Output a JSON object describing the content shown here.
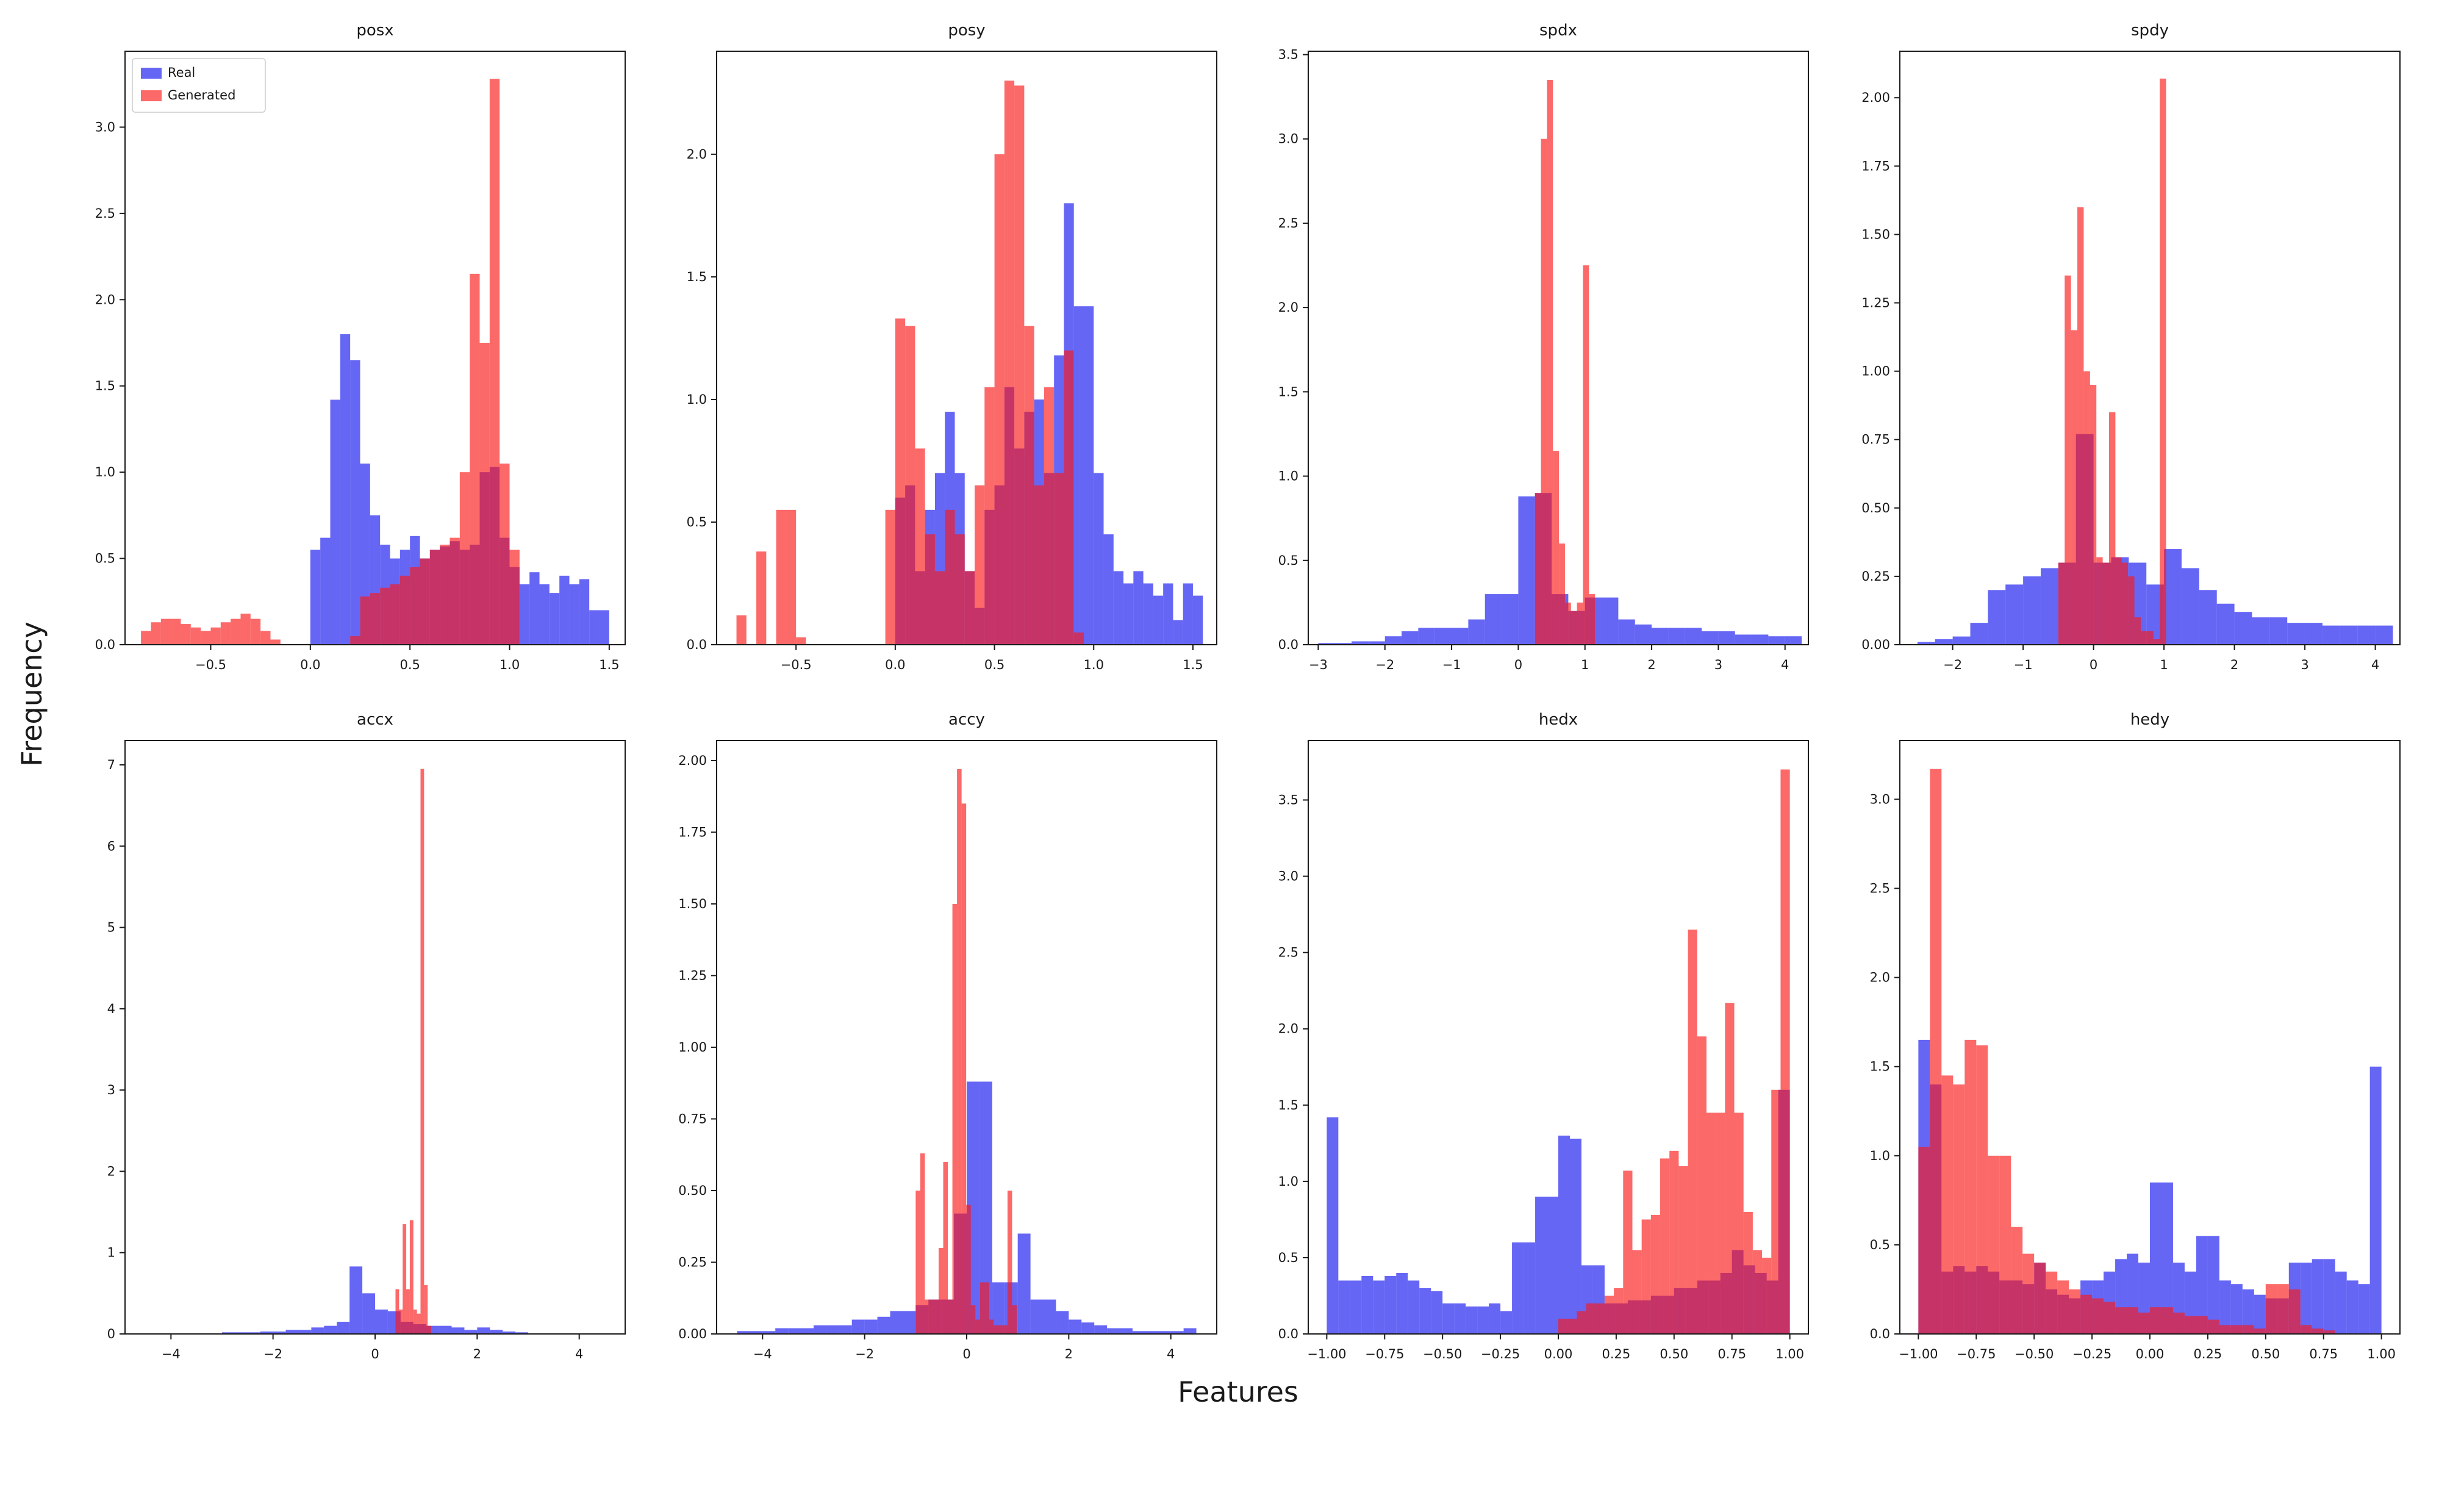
{
  "chart_data": {
    "type": "bar",
    "subtype": "overlaid-histograms",
    "ylabel": "Frequency",
    "xlabel": "Features",
    "legend_position": "upper-left-of-first-subplot",
    "colors": {
      "real": "#1414f0",
      "generated": "#fa1919",
      "alpha": 0.65
    },
    "subplots": [
      {
        "title": "posx",
        "xlim": [
          -0.93,
          1.58
        ],
        "ylim": [
          0,
          3.44
        ],
        "xticks": {
          "values": [
            -0.5,
            0.0,
            0.5,
            1.0,
            1.5
          ],
          "labels": [
            "−0.5",
            "0.0",
            "0.5",
            "1.0",
            "1.5"
          ]
        },
        "yticks": {
          "values": [
            0.0,
            0.5,
            1.0,
            1.5,
            2.0,
            2.5,
            3.0
          ],
          "labels": [
            "0.0",
            "0.5",
            "1.0",
            "1.5",
            "2.0",
            "2.5",
            "3.0"
          ]
        },
        "legend": [
          {
            "key": "real",
            "label": "Real"
          },
          {
            "key": "generated",
            "label": "Generated"
          }
        ],
        "real": {
          "start": 0.0,
          "bin_width": 0.05,
          "heights": [
            0.55,
            0.62,
            1.42,
            1.8,
            1.65,
            1.05,
            0.75,
            0.58,
            0.5,
            0.55,
            0.63,
            0.5,
            0.55,
            0.57,
            0.6,
            0.55,
            0.58,
            1.0,
            1.03,
            0.62,
            0.45,
            0.35,
            0.42,
            0.35,
            0.3,
            0.4,
            0.35,
            0.38,
            0.2,
            0.2
          ]
        },
        "generated": {
          "start": -0.85,
          "bin_width": 0.05,
          "heights": [
            0.08,
            0.13,
            0.15,
            0.15,
            0.12,
            0.1,
            0.08,
            0.1,
            0.13,
            0.15,
            0.18,
            0.15,
            0.08,
            0.03,
            0,
            0,
            0,
            0,
            0,
            0,
            0,
            0.05,
            0.28,
            0.3,
            0.33,
            0.35,
            0.4,
            0.45,
            0.5,
            0.55,
            0.58,
            0.62,
            1.0,
            2.15,
            1.75,
            3.28,
            1.05,
            0.55
          ]
        }
      },
      {
        "title": "posy",
        "xlim": [
          -0.9,
          1.62
        ],
        "ylim": [
          0,
          2.42
        ],
        "xticks": {
          "values": [
            -0.5,
            0.0,
            0.5,
            1.0,
            1.5
          ],
          "labels": [
            "−0.5",
            "0.0",
            "0.5",
            "1.0",
            "1.5"
          ]
        },
        "yticks": {
          "values": [
            0.0,
            0.5,
            1.0,
            1.5,
            2.0
          ],
          "labels": [
            "0.0",
            "0.5",
            "1.0",
            "1.5",
            "2.0"
          ]
        },
        "real": {
          "start": 0.0,
          "bin_width": 0.05,
          "heights": [
            0.6,
            0.65,
            0.3,
            0.55,
            0.7,
            0.95,
            0.7,
            0.3,
            0.15,
            0.55,
            0.65,
            1.05,
            0.8,
            0.95,
            1.0,
            0.7,
            1.18,
            1.8,
            1.38,
            1.38,
            0.7,
            0.45,
            0.3,
            0.25,
            0.3,
            0.25,
            0.2,
            0.25,
            0.1,
            0.25,
            0.2
          ]
        },
        "generated": {
          "start": -0.8,
          "bin_width": 0.05,
          "heights": [
            0.12,
            0,
            0.38,
            0,
            0.55,
            0.55,
            0.03,
            0,
            0,
            0,
            0,
            0,
            0,
            0,
            0,
            0.55,
            1.33,
            1.3,
            0.8,
            0.45,
            0.3,
            0.55,
            0.45,
            0.3,
            0.65,
            1.05,
            2.0,
            2.3,
            2.28,
            1.3,
            0.65,
            1.05,
            0.7,
            1.2,
            0.05
          ]
        }
      },
      {
        "title": "spdx",
        "xlim": [
          -3.15,
          4.35
        ],
        "ylim": [
          0,
          3.52
        ],
        "xticks": {
          "values": [
            -3,
            -2,
            -1,
            0,
            1,
            2,
            3,
            4
          ],
          "labels": [
            "−3",
            "−2",
            "−1",
            "0",
            "1",
            "2",
            "3",
            "4"
          ]
        },
        "yticks": {
          "values": [
            0,
            0.5,
            1,
            1.5,
            2,
            2.5,
            3,
            3.5
          ],
          "labels": [
            "0.0",
            "0.5",
            "1.0",
            "1.5",
            "2.0",
            "2.5",
            "3.0",
            "3.5"
          ]
        },
        "real": {
          "start": -3.0,
          "bin_width": 0.25,
          "heights": [
            0.01,
            0.01,
            0.02,
            0.02,
            0.05,
            0.08,
            0.1,
            0.1,
            0.1,
            0.15,
            0.3,
            0.3,
            0.88,
            0.9,
            0.3,
            0.2,
            0.28,
            0.28,
            0.15,
            0.12,
            0.1,
            0.1,
            0.1,
            0.08,
            0.08,
            0.06,
            0.06,
            0.05,
            0.05
          ]
        },
        "generated": {
          "start": 0.25,
          "bin_width": 0.09,
          "heights": [
            0.9,
            3.0,
            3.35,
            1.15,
            0.6,
            0.25,
            0.2,
            0.25,
            2.25,
            0.3
          ]
        }
      },
      {
        "title": "spdy",
        "xlim": [
          -2.75,
          4.35
        ],
        "ylim": [
          0,
          2.17
        ],
        "xticks": {
          "values": [
            -2,
            -1,
            0,
            1,
            2,
            3,
            4
          ],
          "labels": [
            "−2",
            "−1",
            "0",
            "1",
            "2",
            "3",
            "4"
          ]
        },
        "yticks": {
          "values": [
            0,
            0.25,
            0.5,
            0.75,
            1,
            1.25,
            1.5,
            1.75,
            2
          ],
          "labels": [
            "0.00",
            "0.25",
            "0.50",
            "0.75",
            "1.00",
            "1.25",
            "1.50",
            "1.75",
            "2.00"
          ]
        },
        "real": {
          "start": -2.5,
          "bin_width": 0.25,
          "heights": [
            0.01,
            0.02,
            0.03,
            0.08,
            0.2,
            0.22,
            0.25,
            0.28,
            0.3,
            0.77,
            0.3,
            0.32,
            0.3,
            0.22,
            0.35,
            0.28,
            0.2,
            0.15,
            0.12,
            0.1,
            0.1,
            0.08,
            0.08,
            0.07,
            0.07,
            0.07,
            0.07
          ]
        },
        "generated": {
          "start": -0.5,
          "bin_width": 0.09,
          "heights": [
            0.3,
            1.35,
            1.15,
            1.6,
            1.0,
            0.95,
            0.32,
            0.3,
            0.85,
            0.32,
            0.3,
            0.25,
            0.1,
            0.05,
            0.05,
            0.02,
            2.07
          ]
        }
      },
      {
        "title": "accx",
        "xlim": [
          -4.9,
          4.9
        ],
        "ylim": [
          0,
          7.3
        ],
        "xticks": {
          "values": [
            -4,
            -2,
            0,
            2,
            4
          ],
          "labels": [
            "−4",
            "−2",
            "0",
            "2",
            "4"
          ]
        },
        "yticks": {
          "values": [
            0,
            1,
            2,
            3,
            4,
            5,
            6,
            7
          ],
          "labels": [
            "0",
            "1",
            "2",
            "3",
            "4",
            "5",
            "6",
            "7"
          ]
        },
        "real": {
          "start": -3.0,
          "bin_width": 0.25,
          "heights": [
            0.02,
            0.02,
            0.02,
            0.03,
            0.03,
            0.05,
            0.05,
            0.08,
            0.1,
            0.15,
            0.83,
            0.5,
            0.3,
            0.28,
            0.15,
            0.12,
            0.1,
            0.1,
            0.08,
            0.05,
            0.08,
            0.05,
            0.03,
            0.02
          ]
        },
        "generated": {
          "start": 0.4,
          "bin_width": 0.07,
          "heights": [
            0.55,
            0.3,
            1.35,
            0.55,
            1.4,
            0.3,
            0.25,
            6.95,
            0.6,
            0.1
          ]
        }
      },
      {
        "title": "accy",
        "xlim": [
          -4.9,
          4.9
        ],
        "ylim": [
          0,
          2.07
        ],
        "xticks": {
          "values": [
            -4,
            -2,
            0,
            2,
            4
          ],
          "labels": [
            "−4",
            "−2",
            "0",
            "2",
            "4"
          ]
        },
        "yticks": {
          "values": [
            0,
            0.25,
            0.5,
            0.75,
            1,
            1.25,
            1.5,
            1.75,
            2
          ],
          "labels": [
            "0.00",
            "0.25",
            "0.50",
            "0.75",
            "1.00",
            "1.25",
            "1.50",
            "1.75",
            "2.00"
          ]
        },
        "real": {
          "start": -4.5,
          "bin_width": 0.25,
          "heights": [
            0.01,
            0.01,
            0.01,
            0.02,
            0.02,
            0.02,
            0.03,
            0.03,
            0.03,
            0.05,
            0.05,
            0.06,
            0.08,
            0.08,
            0.1,
            0.12,
            0.12,
            0.42,
            0.88,
            0.88,
            0.18,
            0.18,
            0.35,
            0.12,
            0.12,
            0.08,
            0.05,
            0.04,
            0.03,
            0.02,
            0.02,
            0.01,
            0.01,
            0.01,
            0.01,
            0.02
          ]
        },
        "generated": {
          "start": -1.0,
          "bin_width": 0.09,
          "heights": [
            0.5,
            0.63,
            0.12,
            0.12,
            0.12,
            0.3,
            0.6,
            0.12,
            1.5,
            1.97,
            1.85,
            0.45,
            0.1,
            0.05,
            0.18,
            0.18,
            0.05,
            0.03,
            0.03,
            0.03,
            0.5,
            0.1
          ]
        }
      },
      {
        "title": "hedx",
        "xlim": [
          -1.08,
          1.08
        ],
        "ylim": [
          0,
          3.89
        ],
        "xticks": {
          "values": [
            -1,
            -0.75,
            -0.5,
            -0.25,
            0,
            0.25,
            0.5,
            0.75,
            1
          ],
          "labels": [
            "−1.00",
            "−0.75",
            "−0.50",
            "−0.25",
            "0.00",
            "0.25",
            "0.50",
            "0.75",
            "1.00"
          ]
        },
        "yticks": {
          "values": [
            0,
            0.5,
            1,
            1.5,
            2,
            2.5,
            3,
            3.5
          ],
          "labels": [
            "0.0",
            "0.5",
            "1.0",
            "1.5",
            "2.0",
            "2.5",
            "3.0",
            "3.5"
          ]
        },
        "real": {
          "start": -1.0,
          "bin_width": 0.05,
          "heights": [
            1.42,
            0.35,
            0.35,
            0.38,
            0.35,
            0.38,
            0.4,
            0.35,
            0.3,
            0.28,
            0.2,
            0.2,
            0.18,
            0.18,
            0.2,
            0.15,
            0.6,
            0.6,
            0.9,
            0.9,
            1.3,
            1.28,
            0.45,
            0.45,
            0.2,
            0.2,
            0.22,
            0.22,
            0.25,
            0.25,
            0.3,
            0.3,
            0.35,
            0.35,
            0.4,
            0.55,
            0.45,
            0.4,
            0.35,
            1.6
          ]
        },
        "generated": {
          "start": 0.0,
          "bin_width": 0.04,
          "heights": [
            0.1,
            0.1,
            0.15,
            0.2,
            0.2,
            0.25,
            0.3,
            1.07,
            0.55,
            0.75,
            0.78,
            1.15,
            1.2,
            1.1,
            2.65,
            1.95,
            1.45,
            1.45,
            2.17,
            1.45,
            0.8,
            0.55,
            0.5,
            1.6,
            3.7
          ]
        }
      },
      {
        "title": "hedy",
        "xlim": [
          -1.08,
          1.08
        ],
        "ylim": [
          0,
          3.33
        ],
        "xticks": {
          "values": [
            -1,
            -0.75,
            -0.5,
            -0.25,
            0,
            0.25,
            0.5,
            0.75,
            1
          ],
          "labels": [
            "−1.00",
            "−0.75",
            "−0.50",
            "−0.25",
            "0.00",
            "0.25",
            "0.50",
            "0.75",
            "1.00"
          ]
        },
        "yticks": {
          "values": [
            0,
            0.5,
            1,
            1.5,
            2,
            2.5,
            3
          ],
          "labels": [
            "0.0",
            "0.5",
            "1.0",
            "1.5",
            "2.0",
            "2.5",
            "3.0"
          ]
        },
        "real": {
          "start": -1.0,
          "bin_width": 0.05,
          "heights": [
            1.65,
            1.4,
            0.35,
            0.38,
            0.35,
            0.38,
            0.35,
            0.3,
            0.3,
            0.28,
            0.4,
            0.25,
            0.22,
            0.2,
            0.3,
            0.3,
            0.35,
            0.42,
            0.45,
            0.4,
            0.85,
            0.85,
            0.4,
            0.35,
            0.55,
            0.55,
            0.3,
            0.28,
            0.25,
            0.22,
            0.2,
            0.2,
            0.4,
            0.4,
            0.42,
            0.42,
            0.35,
            0.3,
            0.28,
            1.5
          ]
        },
        "generated": {
          "start": -1.0,
          "bin_width": 0.05,
          "heights": [
            1.05,
            3.17,
            1.45,
            1.4,
            1.65,
            1.62,
            1.0,
            1.0,
            0.6,
            0.45,
            0.4,
            0.35,
            0.3,
            0.25,
            0.22,
            0.2,
            0.18,
            0.15,
            0.15,
            0.12,
            0.15,
            0.15,
            0.12,
            0.1,
            0.1,
            0.08,
            0.05,
            0.05,
            0.05,
            0.03,
            0.28,
            0.28,
            0.25,
            0.05,
            0.03,
            0.02,
            0,
            0,
            0,
            0
          ]
        }
      }
    ]
  }
}
